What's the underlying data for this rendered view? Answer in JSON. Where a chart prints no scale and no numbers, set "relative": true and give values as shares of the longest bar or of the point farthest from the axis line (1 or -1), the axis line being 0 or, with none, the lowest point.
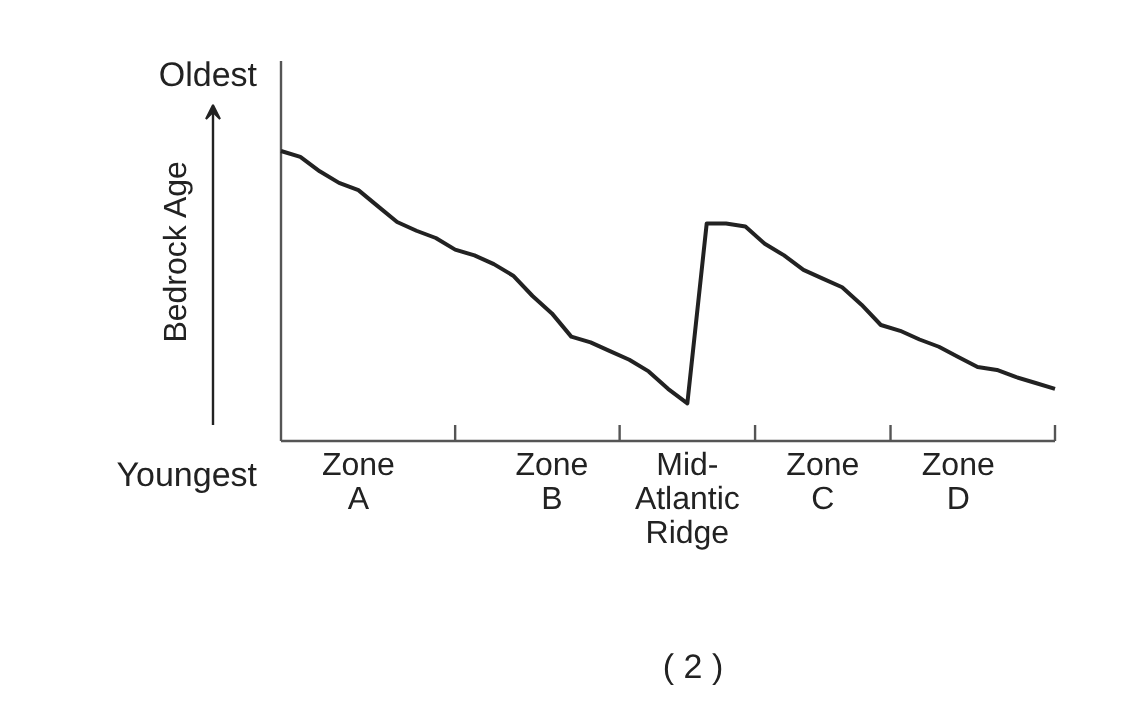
{
  "chart_data": {
    "type": "line",
    "relative": true,
    "ylabel": "Bedrock Age",
    "categories": [
      null,
      null,
      null,
      null,
      "Zone A",
      null,
      null,
      null,
      null,
      null,
      null,
      null,
      null,
      null,
      "Zone B",
      null,
      null,
      null,
      null,
      null,
      null,
      "Mid-Atlantic Ridge",
      null,
      null,
      null,
      null,
      null,
      null,
      "Zone C",
      null,
      null,
      null,
      null,
      null,
      null,
      "Zone D",
      null,
      null,
      null,
      null,
      null
    ],
    "series": [
      {
        "color": "#222222",
        "values": [
          1.0,
          0.98,
          0.93,
          0.89,
          0.865,
          0.81,
          0.755,
          0.725,
          0.7,
          0.66,
          0.64,
          0.61,
          0.57,
          0.5,
          0.44,
          0.36,
          0.34,
          0.31,
          0.28,
          0.24,
          0.18,
          0.13,
          0.75,
          0.75,
          0.74,
          0.68,
          0.64,
          0.59,
          0.56,
          0.53,
          0.47,
          0.4,
          0.38,
          0.35,
          0.325,
          0.29,
          0.255,
          0.245,
          0.22,
          0.2,
          0.18
        ]
      }
    ],
    "grid": false,
    "marker": "none",
    "line_style": "solid",
    "annotations": [
      "Oldest",
      "Youngest",
      "( 2 )"
    ]
  }
}
